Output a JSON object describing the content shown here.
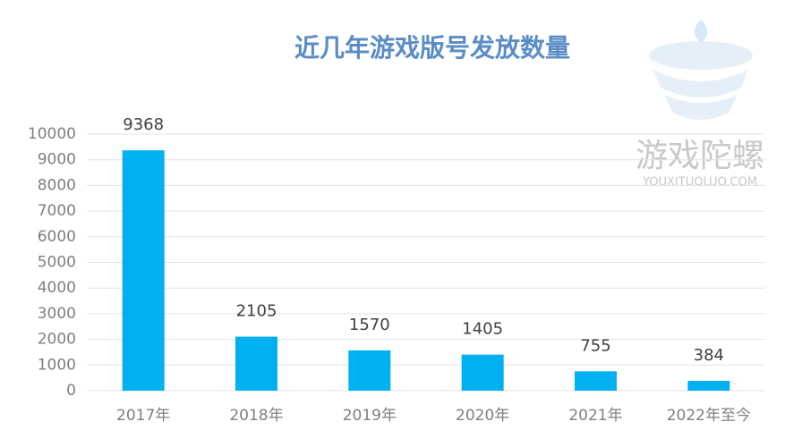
{
  "chart_data": {
    "type": "bar",
    "title": "近几年游戏版号发放数量",
    "categories": [
      "2017年",
      "2018年",
      "2019年",
      "2020年",
      "2021年",
      "2022年至今"
    ],
    "values": [
      9368,
      2105,
      1570,
      1405,
      755,
      384
    ],
    "color": "#00b0f0",
    "ylim": [
      0,
      10000
    ],
    "yticks": [
      0,
      1000,
      2000,
      3000,
      4000,
      5000,
      6000,
      7000,
      8000,
      9000,
      10000
    ],
    "grid": true,
    "watermark": {
      "text": "游戏陀螺",
      "url": "YOUXITUOLUO.COM"
    }
  }
}
